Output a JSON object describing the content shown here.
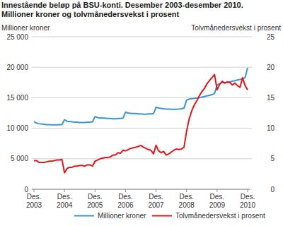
{
  "chart_data": {
    "type": "line",
    "title": "Innestående beløp på BSU-konti. Desember 2003-desember 2010.",
    "subtitle": "Millioner kroner og tolvmånedersvekst i prosent",
    "y_label": "Millioner kroner",
    "y2_label": "Tolvmånedersvekst i prosent",
    "categories": [
      "Des. 2003",
      null,
      null,
      null,
      null,
      null,
      null,
      null,
      null,
      null,
      null,
      null,
      "Des. 2004",
      null,
      null,
      null,
      null,
      null,
      null,
      null,
      null,
      null,
      null,
      null,
      "Des. 2005",
      null,
      null,
      null,
      null,
      null,
      null,
      null,
      null,
      null,
      null,
      null,
      "Des. 2006",
      null,
      null,
      null,
      null,
      null,
      null,
      null,
      null,
      null,
      null,
      null,
      "Des. 2007",
      null,
      null,
      null,
      null,
      null,
      null,
      null,
      null,
      null,
      null,
      null,
      "Des. 2008",
      null,
      null,
      null,
      null,
      null,
      null,
      null,
      null,
      null,
      null,
      null,
      "Des. 2009",
      null,
      null,
      null,
      null,
      null,
      null,
      null,
      null,
      null,
      null,
      null,
      "Des. 2010"
    ],
    "series": [
      {
        "name": "Millioner kroner",
        "color": "#3a95d1",
        "values": [
          11100,
          10850,
          10750,
          10700,
          10650,
          10600,
          10600,
          10550,
          10550,
          10550,
          10600,
          10600,
          11400,
          11150,
          11100,
          11050,
          11000,
          11000,
          10950,
          10950,
          10950,
          11000,
          11000,
          11050,
          11900,
          11750,
          11700,
          11650,
          11650,
          11600,
          11600,
          11550,
          11550,
          11600,
          11600,
          11650,
          12650,
          12500,
          12450,
          12400,
          12400,
          12350,
          12350,
          12300,
          12300,
          12350,
          12350,
          12400,
          13450,
          13300,
          13250,
          13200,
          13150,
          13150,
          13100,
          13100,
          13100,
          13150,
          13200,
          13300,
          14600,
          14800,
          14850,
          14900,
          14950,
          15000,
          15100,
          15200,
          15300,
          15400,
          15500,
          15700,
          17100,
          17300,
          17500,
          17450,
          17500,
          17600,
          17700,
          17800,
          17900,
          18000,
          18100,
          18300,
          19900
        ]
      },
      {
        "name": "Tolvmånedersvekst i prosent",
        "color": "#e0161b",
        "axis": "y2",
        "values": [
          4.7,
          4.7,
          4.4,
          4.4,
          4.4,
          4.5,
          4.6,
          4.6,
          4.7,
          4.8,
          4.8,
          4.9,
          2.7,
          3.4,
          3.6,
          3.6,
          3.8,
          3.8,
          3.9,
          3.9,
          3.8,
          4.0,
          4.0,
          3.8,
          4.6,
          4.8,
          5.0,
          5.1,
          5.2,
          5.2,
          5.3,
          5.6,
          5.6,
          6.0,
          5.9,
          6.4,
          6.3,
          6.5,
          6.7,
          6.8,
          6.9,
          7.0,
          7.2,
          6.9,
          6.7,
          6.5,
          6.4,
          5.8,
          7.2,
          6.3,
          6.0,
          6.2,
          5.6,
          5.8,
          6.1,
          6.4,
          6.6,
          6.5,
          6.6,
          6.9,
          9.5,
          11.5,
          12.8,
          13.8,
          14.5,
          15.3,
          16.0,
          16.5,
          17.3,
          17.8,
          18.3,
          18.8,
          16.3,
          17.2,
          17.7,
          17.4,
          17.6,
          17.5,
          17.1,
          17.4,
          17.0,
          16.7,
          18.3,
          17.0,
          16.3
        ]
      }
    ],
    "ylim": [
      0,
      25000
    ],
    "yticks": [
      0,
      {
        "value": 5000,
        "label": "5 000"
      },
      {
        "value": 10000,
        "label": "10 000"
      },
      {
        "value": 15000,
        "label": "15 000"
      },
      {
        "value": 20000,
        "label": "20 000"
      },
      {
        "value": 25000,
        "label": "25 000"
      }
    ],
    "y2lim": [
      0,
      25
    ],
    "y2ticks": [
      0,
      5,
      10,
      15,
      20,
      25
    ],
    "grid": true,
    "legend": "bottom"
  }
}
